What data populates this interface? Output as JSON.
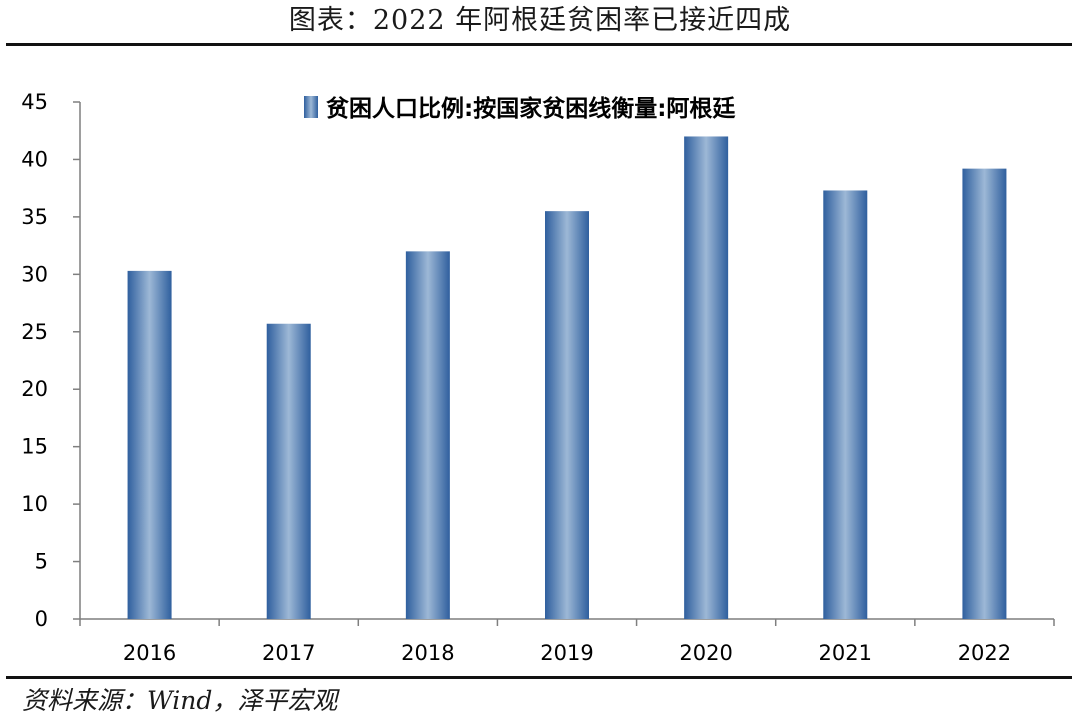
{
  "header": {
    "title": "图表：2022 年阿根廷贫困率已接近四成"
  },
  "footer": {
    "source": "资料来源：Wind，泽平宏观"
  },
  "chart_data": {
    "type": "bar",
    "title": "",
    "xlabel": "",
    "ylabel": "",
    "categories": [
      "2016",
      "2017",
      "2018",
      "2019",
      "2020",
      "2021",
      "2022"
    ],
    "series": [
      {
        "name": "贫困人口比例:按国家贫困线衡量:阿根廷",
        "values": [
          30.3,
          25.7,
          32.0,
          35.5,
          42.0,
          37.3,
          39.2
        ],
        "color": "#4a7ab4"
      }
    ],
    "ylim": [
      0,
      45
    ],
    "yticks": [
      0,
      5,
      10,
      15,
      20,
      25,
      30,
      35,
      40,
      45
    ],
    "grid": false,
    "legend": "top-center"
  }
}
